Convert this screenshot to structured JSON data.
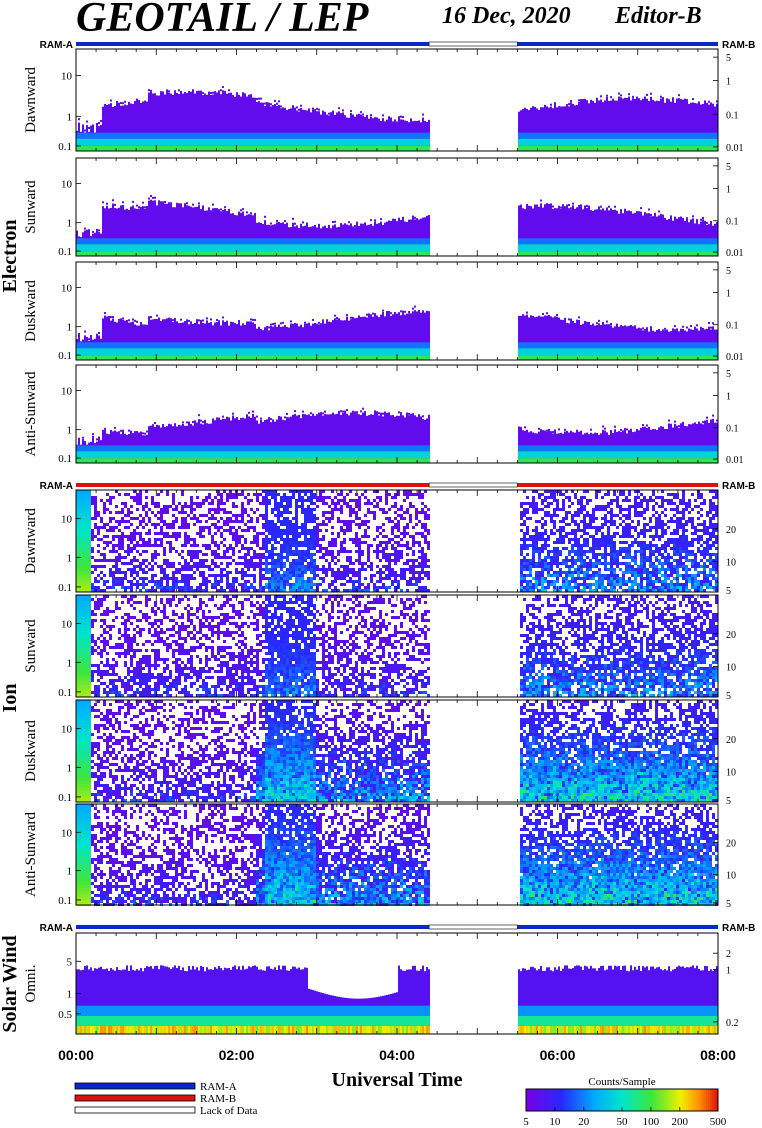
{
  "header": {
    "title": "GEOTAIL / LEP",
    "date": "16 Dec, 2020",
    "editor": "Editor-B"
  },
  "chart_data": {
    "type": "heatmap",
    "xlabel": "Universal Time",
    "x_ticks": [
      "00:00",
      "02:00",
      "04:00",
      "06:00",
      "08:00"
    ],
    "x_range_hours": [
      0,
      8
    ],
    "data_gap_hours": [
      4.4,
      5.5
    ],
    "groups": [
      {
        "name": "Electron",
        "ram_left": "RAM-A",
        "ram_right": "RAM-B",
        "panels": [
          {
            "label": "Dawnward",
            "left_ticks": [
              "10",
              "1",
              "0.1"
            ],
            "right_ticks": [
              "5",
              "1",
              "0.1",
              "0.01"
            ]
          },
          {
            "label": "Sunward",
            "left_ticks": [
              "10",
              "1",
              "0.1"
            ],
            "right_ticks": [
              "5",
              "1",
              "0.1",
              "0.01"
            ]
          },
          {
            "label": "Duskward",
            "left_ticks": [
              "10",
              "1",
              "0.1"
            ],
            "right_ticks": [
              "5",
              "1",
              "0.1",
              "0.01"
            ]
          },
          {
            "label": "Anti-Sunward",
            "left_ticks": [
              "10",
              "1",
              "0.1"
            ],
            "right_ticks": [
              "5",
              "1",
              "0.1",
              "0.01"
            ]
          }
        ]
      },
      {
        "name": "Ion",
        "ram_left": "RAM-A",
        "ram_right": "RAM-B",
        "panels": [
          {
            "label": "Dawnward",
            "left_ticks": [
              "10",
              "1",
              "0.1"
            ],
            "right_ticks": [
              "20",
              "10",
              "5"
            ]
          },
          {
            "label": "Sunward",
            "left_ticks": [
              "10",
              "1",
              "0.1"
            ],
            "right_ticks": [
              "20",
              "10",
              "5"
            ]
          },
          {
            "label": "Duskward",
            "left_ticks": [
              "10",
              "1",
              "0.1"
            ],
            "right_ticks": [
              "20",
              "10",
              "5"
            ]
          },
          {
            "label": "Anti-Sunward",
            "left_ticks": [
              "10",
              "1",
              "0.1"
            ],
            "right_ticks": [
              "20",
              "10",
              "5"
            ]
          }
        ]
      },
      {
        "name": "Solar Wind",
        "ram_left": "RAM-A",
        "ram_right": "RAM-B",
        "panels": [
          {
            "label": "Omni.",
            "left_ticks": [
              "5",
              "1",
              "0.5"
            ],
            "right_ticks": [
              "2",
              "1",
              "0.2"
            ]
          }
        ]
      }
    ],
    "legend": [
      {
        "label": "RAM-A",
        "color": "#0a28c8"
      },
      {
        "label": "RAM-B",
        "color": "#e01010"
      },
      {
        "label": "Lack of Data",
        "color": "#ffffff"
      }
    ],
    "colorbar": {
      "title": "Counts/Sample",
      "ticks": [
        "5",
        "10",
        "20",
        "50",
        "100",
        "200",
        "500"
      ]
    }
  }
}
